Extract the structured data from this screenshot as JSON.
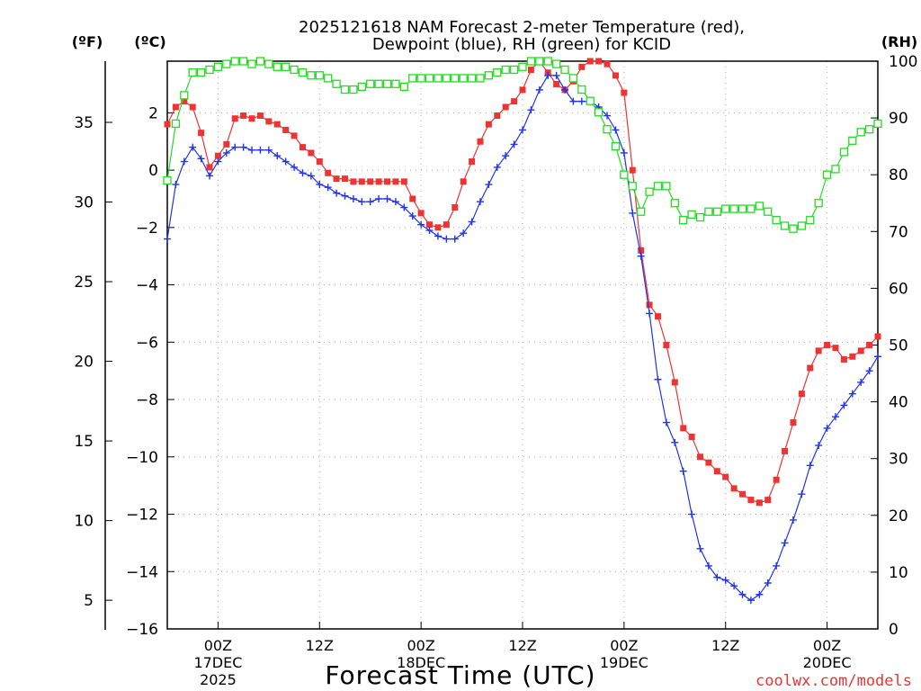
{
  "chart_data": {
    "type": "line",
    "title_line1": "2025121618 NAM Forecast 2-meter Temperature (red),",
    "title_line2": "Dewpoint (blue), RH (green) for KCID",
    "unit_f": "(ºF)",
    "unit_c": "(ºC)",
    "unit_rh": "(RH)",
    "xlabel": "Forecast Time (UTC)",
    "credit": "coolwx.com/models",
    "f_ticks": [
      "35",
      "30",
      "25",
      "20",
      "15",
      "10",
      "5"
    ],
    "c_ticks": [
      "2",
      "0",
      "−2",
      "−4",
      "−6",
      "−8",
      "−10",
      "−12",
      "−14",
      "−16"
    ],
    "rh_ticks": [
      "100",
      "90",
      "80",
      "70",
      "60",
      "50",
      "40",
      "30",
      "20",
      "10",
      "0"
    ],
    "x_ticks": [
      {
        "label": "00Z",
        "hour": 6,
        "date": "17DEC",
        "year": "2025"
      },
      {
        "label": "12Z",
        "hour": 18,
        "date": "",
        "year": ""
      },
      {
        "label": "00Z",
        "hour": 30,
        "date": "18DEC",
        "year": ""
      },
      {
        "label": "12Z",
        "hour": 42,
        "date": "",
        "year": ""
      },
      {
        "label": "00Z",
        "hour": 54,
        "date": "19DEC",
        "year": ""
      },
      {
        "label": "12Z",
        "hour": 66,
        "date": "",
        "year": ""
      },
      {
        "label": "00Z",
        "hour": 78,
        "date": "20DEC",
        "year": ""
      }
    ],
    "c_range": [
      -16,
      3.8
    ],
    "rh_range": [
      0,
      100
    ],
    "x_range": [
      0,
      84
    ],
    "series": [
      {
        "name": "Temperature",
        "unit": "C",
        "color": "#ee3333",
        "marker": "square-filled",
        "values": [
          [
            0,
            1.6
          ],
          [
            1,
            2.2
          ],
          [
            2,
            2.4
          ],
          [
            3,
            2.2
          ],
          [
            4,
            1.3
          ],
          [
            5,
            0.1
          ],
          [
            6,
            0.5
          ],
          [
            7,
            0.9
          ],
          [
            8,
            1.8
          ],
          [
            9,
            1.9
          ],
          [
            10,
            1.8
          ],
          [
            11,
            1.9
          ],
          [
            12,
            1.7
          ],
          [
            13,
            1.6
          ],
          [
            14,
            1.4
          ],
          [
            15,
            1.2
          ],
          [
            16,
            0.8
          ],
          [
            17,
            0.6
          ],
          [
            18,
            0.3
          ],
          [
            19,
            -0.1
          ],
          [
            20,
            -0.3
          ],
          [
            21,
            -0.3
          ],
          [
            22,
            -0.4
          ],
          [
            23,
            -0.4
          ],
          [
            24,
            -0.4
          ],
          [
            25,
            -0.4
          ],
          [
            26,
            -0.4
          ],
          [
            27,
            -0.4
          ],
          [
            28,
            -0.4
          ],
          [
            29,
            -1.0
          ],
          [
            30,
            -1.5
          ],
          [
            31,
            -1.9
          ],
          [
            32,
            -2.0
          ],
          [
            33,
            -1.9
          ],
          [
            34,
            -1.3
          ],
          [
            35,
            -0.4
          ],
          [
            36,
            0.3
          ],
          [
            37,
            1.0
          ],
          [
            38,
            1.6
          ],
          [
            39,
            1.9
          ],
          [
            40,
            2.2
          ],
          [
            41,
            2.4
          ],
          [
            42,
            2.8
          ],
          [
            43,
            3.5
          ],
          [
            44,
            3.8
          ],
          [
            45,
            3.4
          ],
          [
            46,
            3.0
          ],
          [
            47,
            2.8
          ],
          [
            48,
            3.1
          ],
          [
            49,
            3.6
          ],
          [
            50,
            4.1
          ],
          [
            51,
            4.0
          ],
          [
            52,
            3.7
          ],
          [
            53,
            3.3
          ],
          [
            54,
            2.7
          ],
          [
            55,
            0.0
          ],
          [
            56,
            -2.8
          ],
          [
            57,
            -4.7
          ],
          [
            58,
            -5.1
          ],
          [
            59,
            -6.1
          ],
          [
            60,
            -7.4
          ],
          [
            61,
            -9.0
          ],
          [
            62,
            -9.3
          ],
          [
            63,
            -10.0
          ],
          [
            64,
            -10.2
          ],
          [
            65,
            -10.5
          ],
          [
            66,
            -10.7
          ],
          [
            67,
            -11.1
          ],
          [
            68,
            -11.3
          ],
          [
            69,
            -11.5
          ],
          [
            70,
            -11.6
          ],
          [
            71,
            -11.5
          ],
          [
            72,
            -10.8
          ],
          [
            73,
            -9.8
          ],
          [
            74,
            -8.8
          ],
          [
            75,
            -7.8
          ],
          [
            76,
            -6.9
          ],
          [
            77,
            -6.3
          ],
          [
            78,
            -6.1
          ],
          [
            79,
            -6.2
          ],
          [
            80,
            -6.6
          ],
          [
            81,
            -6.5
          ],
          [
            82,
            -6.3
          ],
          [
            83,
            -6.1
          ],
          [
            84,
            -5.8
          ]
        ]
      },
      {
        "name": "Dewpoint",
        "unit": "C",
        "color": "#2233ee",
        "marker": "plus",
        "values": [
          [
            0,
            -2.4
          ],
          [
            1,
            -0.5
          ],
          [
            2,
            0.3
          ],
          [
            3,
            0.8
          ],
          [
            4,
            0.4
          ],
          [
            5,
            -0.2
          ],
          [
            6,
            0.3
          ],
          [
            7,
            0.6
          ],
          [
            8,
            0.8
          ],
          [
            9,
            0.8
          ],
          [
            10,
            0.7
          ],
          [
            11,
            0.7
          ],
          [
            12,
            0.7
          ],
          [
            13,
            0.5
          ],
          [
            14,
            0.3
          ],
          [
            15,
            0.1
          ],
          [
            16,
            -0.1
          ],
          [
            17,
            -0.2
          ],
          [
            18,
            -0.5
          ],
          [
            19,
            -0.6
          ],
          [
            20,
            -0.8
          ],
          [
            21,
            -0.9
          ],
          [
            22,
            -1.0
          ],
          [
            23,
            -1.1
          ],
          [
            24,
            -1.1
          ],
          [
            25,
            -1.0
          ],
          [
            26,
            -1.0
          ],
          [
            27,
            -1.1
          ],
          [
            28,
            -1.3
          ],
          [
            29,
            -1.6
          ],
          [
            30,
            -1.9
          ],
          [
            31,
            -2.1
          ],
          [
            32,
            -2.3
          ],
          [
            33,
            -2.4
          ],
          [
            34,
            -2.4
          ],
          [
            35,
            -2.2
          ],
          [
            36,
            -1.8
          ],
          [
            37,
            -1.1
          ],
          [
            38,
            -0.5
          ],
          [
            39,
            0.1
          ],
          [
            40,
            0.5
          ],
          [
            41,
            0.9
          ],
          [
            42,
            1.4
          ],
          [
            43,
            2.1
          ],
          [
            44,
            2.8
          ],
          [
            45,
            3.3
          ],
          [
            46,
            3.3
          ],
          [
            47,
            2.8
          ],
          [
            48,
            2.4
          ],
          [
            49,
            2.4
          ],
          [
            50,
            2.4
          ],
          [
            51,
            2.2
          ],
          [
            52,
            1.9
          ],
          [
            53,
            1.4
          ],
          [
            54,
            0.6
          ],
          [
            55,
            -1.5
          ],
          [
            56,
            -3.0
          ],
          [
            57,
            -5.0
          ],
          [
            58,
            -7.3
          ],
          [
            59,
            -8.8
          ],
          [
            60,
            -9.5
          ],
          [
            61,
            -10.5
          ],
          [
            62,
            -12.0
          ],
          [
            63,
            -13.2
          ],
          [
            64,
            -13.8
          ],
          [
            65,
            -14.2
          ],
          [
            66,
            -14.3
          ],
          [
            67,
            -14.5
          ],
          [
            68,
            -14.8
          ],
          [
            69,
            -15.0
          ],
          [
            70,
            -14.8
          ],
          [
            71,
            -14.4
          ],
          [
            72,
            -13.8
          ],
          [
            73,
            -13.0
          ],
          [
            74,
            -12.2
          ],
          [
            75,
            -11.3
          ],
          [
            76,
            -10.3
          ],
          [
            77,
            -9.6
          ],
          [
            78,
            -9.0
          ],
          [
            79,
            -8.6
          ],
          [
            80,
            -8.2
          ],
          [
            81,
            -7.8
          ],
          [
            82,
            -7.4
          ],
          [
            83,
            -7.0
          ],
          [
            84,
            -6.5
          ]
        ]
      },
      {
        "name": "RH",
        "unit": "%",
        "color": "#22dd22",
        "marker": "square-open",
        "values": [
          [
            0,
            79
          ],
          [
            1,
            89
          ],
          [
            2,
            94
          ],
          [
            3,
            98
          ],
          [
            4,
            98
          ],
          [
            5,
            98.5
          ],
          [
            6,
            99
          ],
          [
            7,
            99.5
          ],
          [
            8,
            100
          ],
          [
            9,
            100
          ],
          [
            10,
            99.5
          ],
          [
            11,
            100
          ],
          [
            12,
            99.5
          ],
          [
            13,
            99
          ],
          [
            14,
            99
          ],
          [
            15,
            98.5
          ],
          [
            16,
            98
          ],
          [
            17,
            97.5
          ],
          [
            18,
            97.5
          ],
          [
            19,
            97
          ],
          [
            20,
            96
          ],
          [
            21,
            95
          ],
          [
            22,
            95
          ],
          [
            23,
            95.5
          ],
          [
            24,
            96
          ],
          [
            25,
            96
          ],
          [
            26,
            96
          ],
          [
            27,
            96
          ],
          [
            28,
            95.5
          ],
          [
            29,
            97
          ],
          [
            30,
            97
          ],
          [
            31,
            97
          ],
          [
            32,
            97
          ],
          [
            33,
            97
          ],
          [
            34,
            97
          ],
          [
            35,
            97
          ],
          [
            36,
            97
          ],
          [
            37,
            97
          ],
          [
            38,
            97.5
          ],
          [
            39,
            98
          ],
          [
            40,
            98.5
          ],
          [
            41,
            98.5
          ],
          [
            42,
            99
          ],
          [
            43,
            100
          ],
          [
            44,
            100
          ],
          [
            45,
            100
          ],
          [
            46,
            99.5
          ],
          [
            47,
            98.5
          ],
          [
            48,
            97
          ],
          [
            49,
            95
          ],
          [
            50,
            93
          ],
          [
            51,
            91
          ],
          [
            52,
            88
          ],
          [
            53,
            85
          ],
          [
            54,
            80
          ],
          [
            55,
            78
          ],
          [
            56,
            73.5
          ],
          [
            57,
            77
          ],
          [
            58,
            78
          ],
          [
            59,
            78
          ],
          [
            60,
            75
          ],
          [
            61,
            72
          ],
          [
            62,
            73
          ],
          [
            63,
            72.5
          ],
          [
            64,
            73.5
          ],
          [
            65,
            73.5
          ],
          [
            66,
            74
          ],
          [
            67,
            74
          ],
          [
            68,
            74
          ],
          [
            69,
            74
          ],
          [
            70,
            74.5
          ],
          [
            71,
            73.5
          ],
          [
            72,
            72
          ],
          [
            73,
            71
          ],
          [
            74,
            70.5
          ],
          [
            75,
            71
          ],
          [
            76,
            72
          ],
          [
            77,
            75
          ],
          [
            78,
            80
          ],
          [
            79,
            81
          ],
          [
            80,
            84
          ],
          [
            81,
            86
          ],
          [
            82,
            87.5
          ],
          [
            83,
            88
          ],
          [
            84,
            89
          ]
        ]
      }
    ]
  }
}
